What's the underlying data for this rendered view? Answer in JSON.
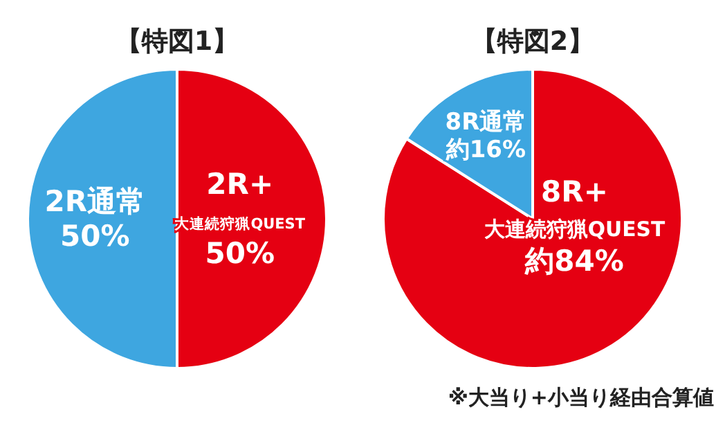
{
  "chart_data": [
    {
      "type": "pie",
      "title": "【特図1】",
      "categories": [
        "2R+\n大連続狩猟QUEST",
        "2R通常"
      ],
      "values": [
        50,
        50
      ],
      "colors": [
        "#e50012",
        "#3ea6e0"
      ],
      "value_labels": [
        "50%",
        "50%"
      ]
    },
    {
      "type": "pie",
      "title": "【特図2】",
      "categories": [
        "8R+\n大連続狩猟QUEST",
        "8R通常"
      ],
      "values": [
        84,
        16
      ],
      "colors": [
        "#e50012",
        "#3ea6e0"
      ],
      "value_labels": [
        "約84%",
        "約16%"
      ],
      "annotations": [
        "※大当り+小当り経由合算値"
      ]
    }
  ]
}
